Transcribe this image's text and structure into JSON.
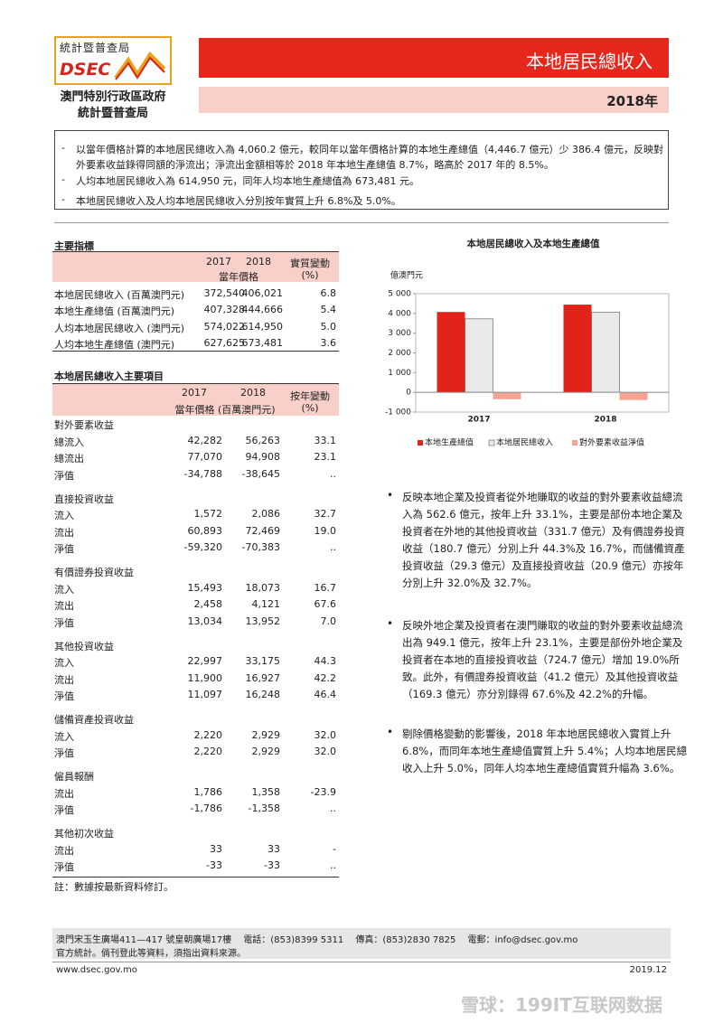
{
  "logo": {
    "name": "統計暨普查局",
    "abbr": "DSEC"
  },
  "org": [
    "澳門特別行政區政府",
    "統計暨普查局"
  ],
  "header": {
    "title": "本地居民總收入",
    "year": "2018年"
  },
  "summary": {
    "marker": "-",
    "items": [
      "以當年價格計算的本地居民總收入為 4,060.2 億元，較同年以當年價格計算的本地生產總值（4,446.7 億元）少 386.4 億元，反映對外要素收益錄得同額的淨流出；淨流出金額相等於 2018 年本地生產總值 8.7%，略高於 2017 年的 8.5%。",
      "人均本地居民總收入為 614,950 元，同年人均本地生產總值為 673,481 元。",
      "本地居民總收入及人均本地居民總收入分別按年實質上升 6.8%及 5.0%。"
    ]
  },
  "table1": {
    "title": "主要指標",
    "years": [
      "2017",
      "2018"
    ],
    "price_header": "當年價格",
    "change_header": [
      "實質變動",
      "(%)"
    ],
    "rows": [
      [
        "本地居民總收入 (百萬澳門元)",
        "372,540",
        "406,021",
        "6.8"
      ],
      [
        "本地生產總值 (百萬澳門元)",
        "407,328",
        "444,666",
        "5.4"
      ],
      [
        "人均本地居民總收入 (澳門元)",
        "574,022",
        "614,950",
        "5.0"
      ],
      [
        "人均本地生產總值 (澳門元)",
        "627,625",
        "673,481",
        "3.6"
      ]
    ]
  },
  "table2": {
    "title": "本地居民總收入主要項目",
    "years": [
      "2017",
      "2018"
    ],
    "price_header": "當年價格 (百萬澳門元)",
    "change_header": [
      "按年變動",
      "(%)"
    ],
    "groups": [
      {
        "name": "對外要素收益",
        "rows": [
          [
            "總流入",
            "42,282",
            "56,263",
            "33.1"
          ],
          [
            "總流出",
            "77,070",
            "94,908",
            "23.1"
          ],
          [
            "淨值",
            "-34,788",
            "-38,645",
            ".."
          ]
        ]
      },
      {
        "name": "直接投資收益",
        "rows": [
          [
            "流入",
            "1,572",
            "2,086",
            "32.7"
          ],
          [
            "流出",
            "60,893",
            "72,469",
            "19.0"
          ],
          [
            "淨值",
            "-59,320",
            "-70,383",
            ".."
          ]
        ]
      },
      {
        "name": "有價證券投資收益",
        "rows": [
          [
            "流入",
            "15,493",
            "18,073",
            "16.7"
          ],
          [
            "流出",
            "2,458",
            "4,121",
            "67.6"
          ],
          [
            "淨值",
            "13,034",
            "13,952",
            "7.0"
          ]
        ]
      },
      {
        "name": "其他投資收益",
        "rows": [
          [
            "流入",
            "22,997",
            "33,175",
            "44.3"
          ],
          [
            "流出",
            "11,900",
            "16,927",
            "42.2"
          ],
          [
            "淨值",
            "11,097",
            "16,248",
            "46.4"
          ]
        ]
      },
      {
        "name": "儲備資產投資收益",
        "rows": [
          [
            "流入",
            "2,220",
            "2,929",
            "32.0"
          ],
          [
            "淨值",
            "2,220",
            "2,929",
            "32.0"
          ]
        ]
      },
      {
        "name": "僱員報酬",
        "rows": [
          [
            "流出",
            "1,786",
            "1,358",
            "-23.9"
          ],
          [
            "淨值",
            "-1,786",
            "-1,358",
            ".."
          ]
        ]
      },
      {
        "name": "其他初次收益",
        "rows": [
          [
            "流出",
            "33",
            "33",
            "-"
          ],
          [
            "淨值",
            "-33",
            "-33",
            ".."
          ]
        ]
      }
    ],
    "note": "註：數據按最新資料修訂。"
  },
  "chart_data": {
    "type": "bar",
    "title": "本地居民總收入及本地生產總值",
    "y_label": "億澳門元",
    "categories": [
      "2017",
      "2018"
    ],
    "series": [
      {
        "name": "本地生產總值",
        "color": "#e2231a",
        "values": [
          4073.28,
          4446.66
        ]
      },
      {
        "name": "本地居民總收入",
        "color": "#e9e9e9",
        "values": [
          3725.4,
          4060.21
        ]
      },
      {
        "name": "對外要素收益淨值",
        "color": "#f4a393",
        "values": [
          -347.88,
          -386.45
        ]
      }
    ],
    "ylim": [
      -1000,
      5000
    ],
    "yticks": [
      {
        "value": -1000,
        "label": "-1 000"
      },
      0,
      {
        "value": 1000,
        "label": "1 000"
      },
      {
        "value": 2000,
        "label": "2 000"
      },
      {
        "value": 3000,
        "label": "3 000"
      },
      {
        "value": 4000,
        "label": "4 000"
      },
      {
        "value": 5000,
        "label": "5 000"
      }
    ],
    "legend": "bottom"
  },
  "bullets": {
    "marker": "•",
    "items": [
      "反映本地企業及投資者從外地賺取的收益的對外要素收益總流入為 562.6 億元，按年上升 33.1%，主要是部份本地企業及投資者在外地的其他投資收益（331.7 億元）及有價證券投資收益（180.7 億元）分別上升 44.3%及 16.7%，而儲備資產投資收益（29.3 億元）及直接投資收益（20.9 億元）亦按年分別上升 32.0%及 32.7%。",
      "反映外地企業及投資者在澳門賺取的收益的對外要素收益總流出為 949.1 億元，按年上升 23.1%，主要是部份外地企業及投資者在本地的直接投資收益（724.7 億元）增加 19.0%所致。此外，有價證券投資收益（41.2 億元）及其他投資收益（169.3 億元）亦分別錄得 67.6%及 42.2%的升幅。",
      "剔除價格變動的影響後，2018 年本地居民總收入實質上升 6.8%，而同年本地生產總值實質上升 5.4%；人均本地居民總收入上升 5.0%，同年人均本地生產總值實質升幅為 3.6%。"
    ]
  },
  "footer": {
    "address": "澳門宋玉生廣場411—417 號皇朝廣場17樓　 電話：(853)8399 5311　 傳真：(853)2830 7825　 電郵：info@dsec.gov.mo",
    "notice": "官方統計。倘刊登此等資料，須指出資料來源。",
    "website": "www.dsec.gov.mo",
    "date": "2019.12"
  },
  "watermark": "雪球：199IT互联网数据"
}
